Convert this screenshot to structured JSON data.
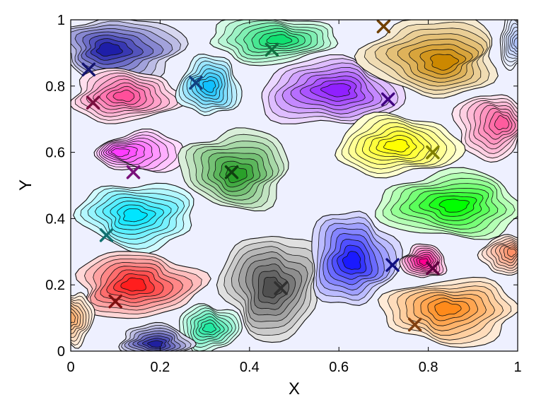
{
  "chart_data": {
    "type": "contour",
    "xlabel": "X",
    "ylabel": "Y",
    "xlim": [
      0,
      1
    ],
    "ylim": [
      0,
      1
    ],
    "xticks": [
      "0",
      "0.2",
      "0.4",
      "0.6",
      "0.8",
      "1"
    ],
    "yticks": [
      "0",
      "0.2",
      "0.4",
      "0.6",
      "0.8",
      "1"
    ],
    "grid": false,
    "background_color": "#eef0ff",
    "regions": [
      {
        "color": "#1e1ea8",
        "cx": 0.11,
        "cy": 0.91,
        "rx": 0.14,
        "ry": 0.1,
        "peak": [
          0.08,
          0.91
        ]
      },
      {
        "color": "#ff4f9a",
        "cx": 0.12,
        "cy": 0.77,
        "rx": 0.12,
        "ry": 0.08,
        "peak": [
          0.12,
          0.77
        ]
      },
      {
        "color": "#ff3cff",
        "cx": 0.16,
        "cy": 0.6,
        "rx": 0.1,
        "ry": 0.06,
        "peak": [
          0.1,
          0.6
        ]
      },
      {
        "color": "#00e5ff",
        "cx": 0.15,
        "cy": 0.41,
        "rx": 0.13,
        "ry": 0.1,
        "peak": [
          0.14,
          0.41
        ]
      },
      {
        "color": "#ff1e1e",
        "cx": 0.15,
        "cy": 0.2,
        "rx": 0.14,
        "ry": 0.1,
        "peak": [
          0.14,
          0.2
        ]
      },
      {
        "color": "#10c0ff",
        "cx": 0.31,
        "cy": 0.8,
        "rx": 0.07,
        "ry": 0.09,
        "peak": [
          0.31,
          0.8
        ]
      },
      {
        "color": "#2aa02a",
        "cx": 0.37,
        "cy": 0.55,
        "rx": 0.12,
        "ry": 0.12,
        "peak": [
          0.37,
          0.53
        ]
      },
      {
        "color": "#10e070",
        "cx": 0.45,
        "cy": 0.94,
        "rx": 0.14,
        "ry": 0.07,
        "peak": [
          0.47,
          0.94
        ]
      },
      {
        "color": "#9020ff",
        "cx": 0.58,
        "cy": 0.78,
        "rx": 0.16,
        "ry": 0.1,
        "peak": [
          0.6,
          0.79
        ]
      },
      {
        "color": "#cc8800",
        "cx": 0.81,
        "cy": 0.89,
        "rx": 0.15,
        "ry": 0.12,
        "peak": [
          0.84,
          0.87
        ]
      },
      {
        "color": "#ff5c9e",
        "cx": 0.94,
        "cy": 0.68,
        "rx": 0.08,
        "ry": 0.1,
        "peak": [
          0.97,
          0.69
        ]
      },
      {
        "color": "#ffff00",
        "cx": 0.73,
        "cy": 0.62,
        "rx": 0.14,
        "ry": 0.09,
        "peak": [
          0.73,
          0.62
        ]
      },
      {
        "color": "#00ff00",
        "cx": 0.85,
        "cy": 0.44,
        "rx": 0.16,
        "ry": 0.1,
        "peak": [
          0.86,
          0.44
        ]
      },
      {
        "color": "#505050",
        "cx": 0.45,
        "cy": 0.2,
        "rx": 0.11,
        "ry": 0.16,
        "peak": [
          0.45,
          0.19
        ]
      },
      {
        "color": "#1a1aff",
        "cx": 0.63,
        "cy": 0.28,
        "rx": 0.1,
        "ry": 0.14,
        "peak": [
          0.63,
          0.27
        ]
      },
      {
        "color": "#ff0090",
        "cx": 0.79,
        "cy": 0.27,
        "rx": 0.05,
        "ry": 0.05,
        "peak": [
          0.79,
          0.27
        ]
      },
      {
        "color": "#ff8a1a",
        "cx": 0.85,
        "cy": 0.12,
        "rx": 0.15,
        "ry": 0.1,
        "peak": [
          0.84,
          0.13
        ]
      },
      {
        "color": "#20e8a0",
        "cx": 0.31,
        "cy": 0.07,
        "rx": 0.07,
        "ry": 0.07,
        "peak": [
          0.31,
          0.07
        ]
      },
      {
        "color": "#2020a0",
        "cx": 0.19,
        "cy": 0.03,
        "rx": 0.08,
        "ry": 0.05,
        "peak": [
          0.19,
          0.02
        ]
      },
      {
        "color": "#ff8f66",
        "cx": 0.97,
        "cy": 0.29,
        "rx": 0.05,
        "ry": 0.06,
        "peak": [
          0.99,
          0.3
        ]
      },
      {
        "color": "#ffb070",
        "cx": 0.01,
        "cy": 0.1,
        "rx": 0.04,
        "ry": 0.08,
        "peak": [
          0.0,
          0.1
        ]
      },
      {
        "color": "#b0c4ff",
        "cx": 0.99,
        "cy": 0.93,
        "rx": 0.03,
        "ry": 0.08,
        "peak": [
          1.0,
          0.93
        ]
      }
    ],
    "markers": [
      {
        "x": 0.04,
        "y": 0.85,
        "color": "#14146e"
      },
      {
        "x": 0.05,
        "y": 0.75,
        "color": "#7a1040"
      },
      {
        "x": 0.14,
        "y": 0.54,
        "color": "#7a107a"
      },
      {
        "x": 0.08,
        "y": 0.35,
        "color": "#107070"
      },
      {
        "x": 0.1,
        "y": 0.15,
        "color": "#801010"
      },
      {
        "x": 0.28,
        "y": 0.81,
        "color": "#104080"
      },
      {
        "x": 0.36,
        "y": 0.54,
        "color": "#104010"
      },
      {
        "x": 0.45,
        "y": 0.91,
        "color": "#107040"
      },
      {
        "x": 0.7,
        "y": 0.98,
        "color": "#704000"
      },
      {
        "x": 0.71,
        "y": 0.76,
        "color": "#400080"
      },
      {
        "x": 0.81,
        "y": 0.6,
        "color": "#808000"
      },
      {
        "x": 0.47,
        "y": 0.19,
        "color": "#303030"
      },
      {
        "x": 0.72,
        "y": 0.26,
        "color": "#101080"
      },
      {
        "x": 0.81,
        "y": 0.25,
        "color": "#600040"
      },
      {
        "x": 0.77,
        "y": 0.08,
        "color": "#804010"
      }
    ]
  }
}
